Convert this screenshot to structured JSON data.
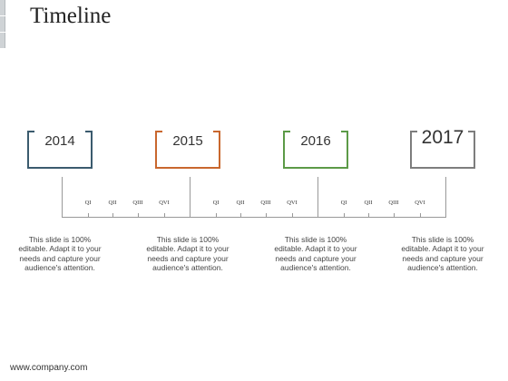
{
  "title": "Timeline",
  "footer": "www.company.com",
  "colors": {
    "c2014": "#3b5b6e",
    "c2015": "#c9672e",
    "c2016": "#5c9a47",
    "c2017": "#7d7d7d"
  },
  "years": [
    {
      "label": "2014",
      "color": "#3b5b6e",
      "quarters": [
        "QI",
        "QII",
        "QIII",
        "QVI"
      ],
      "description": "This slide is 100% editable. Adapt it to your needs and capture your audience's attention."
    },
    {
      "label": "2015",
      "color": "#c9672e",
      "quarters": [
        "QI",
        "QII",
        "QIII",
        "QVI"
      ],
      "description": "This slide is 100% editable. Adapt it to your needs and capture your audience's attention."
    },
    {
      "label": "2016",
      "color": "#5c9a47",
      "quarters": [
        "QI",
        "QII",
        "QIII",
        "QVI"
      ],
      "description": "This slide is 100% editable. Adapt it to your needs and capture your audience's attention."
    },
    {
      "label": "2017",
      "color": "#7d7d7d",
      "quarters": [],
      "description": "This slide is 100% editable. Adapt it to your needs and capture your audience's attention."
    }
  ]
}
